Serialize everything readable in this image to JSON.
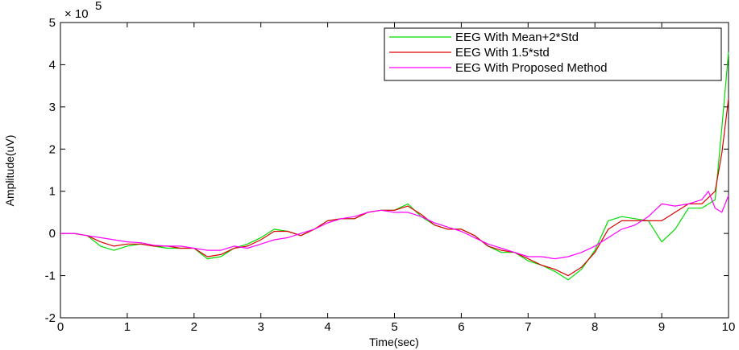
{
  "chart_data": {
    "type": "line",
    "title": "",
    "xlabel": "Time(sec)",
    "ylabel": "Amplitude(uV)",
    "xlim": [
      0,
      10
    ],
    "ylim": [
      -2,
      5
    ],
    "y_multiplier_label": "× 10",
    "y_multiplier_exponent": "5",
    "x_ticks": [
      "0",
      "1",
      "2",
      "3",
      "4",
      "5",
      "6",
      "7",
      "8",
      "9",
      "10"
    ],
    "y_ticks": [
      "-2",
      "-1",
      "0",
      "1",
      "2",
      "3",
      "4",
      "5"
    ],
    "grid": false,
    "legend_position": "top-right",
    "series": [
      {
        "name": "EEG With Mean+2*Std",
        "color": "#00dd00",
        "x": [
          0,
          0.2,
          0.4,
          0.6,
          0.8,
          1.0,
          1.2,
          1.4,
          1.6,
          1.8,
          2.0,
          2.2,
          2.4,
          2.6,
          2.8,
          3.0,
          3.2,
          3.4,
          3.6,
          3.8,
          4.0,
          4.2,
          4.4,
          4.6,
          4.8,
          5.0,
          5.2,
          5.4,
          5.6,
          5.8,
          6.0,
          6.2,
          6.4,
          6.6,
          6.8,
          7.0,
          7.2,
          7.4,
          7.6,
          7.8,
          8.0,
          8.2,
          8.4,
          8.6,
          8.8,
          9.0,
          9.2,
          9.4,
          9.6,
          9.8,
          9.9,
          10.0
        ],
        "y": [
          0,
          0,
          -0.05,
          -0.3,
          -0.4,
          -0.3,
          -0.25,
          -0.3,
          -0.35,
          -0.35,
          -0.35,
          -0.6,
          -0.55,
          -0.35,
          -0.25,
          -0.1,
          0.1,
          0.05,
          -0.05,
          0.1,
          0.3,
          0.35,
          0.35,
          0.5,
          0.55,
          0.55,
          0.7,
          0.4,
          0.2,
          0.1,
          0.1,
          -0.05,
          -0.3,
          -0.45,
          -0.45,
          -0.65,
          -0.75,
          -0.9,
          -1.1,
          -0.85,
          -0.4,
          0.3,
          0.4,
          0.35,
          0.3,
          -0.2,
          0.1,
          0.6,
          0.6,
          0.8,
          2.5,
          4.3
        ]
      },
      {
        "name": "EEG With 1.5*std",
        "color": "#dd0000",
        "x": [
          0,
          0.2,
          0.4,
          0.6,
          0.8,
          1.0,
          1.2,
          1.4,
          1.6,
          1.8,
          2.0,
          2.2,
          2.4,
          2.6,
          2.8,
          3.0,
          3.2,
          3.4,
          3.6,
          3.8,
          4.0,
          4.2,
          4.4,
          4.6,
          4.8,
          5.0,
          5.2,
          5.4,
          5.6,
          5.8,
          6.0,
          6.2,
          6.4,
          6.6,
          6.8,
          7.0,
          7.2,
          7.4,
          7.6,
          7.8,
          8.0,
          8.2,
          8.4,
          8.6,
          8.8,
          9.0,
          9.2,
          9.4,
          9.6,
          9.8,
          9.9,
          10.0
        ],
        "y": [
          0,
          0,
          -0.05,
          -0.2,
          -0.3,
          -0.25,
          -0.25,
          -0.3,
          -0.3,
          -0.35,
          -0.35,
          -0.55,
          -0.5,
          -0.35,
          -0.3,
          -0.15,
          0.05,
          0.05,
          -0.05,
          0.1,
          0.3,
          0.35,
          0.35,
          0.5,
          0.55,
          0.55,
          0.65,
          0.45,
          0.2,
          0.1,
          0.1,
          -0.05,
          -0.3,
          -0.4,
          -0.45,
          -0.6,
          -0.75,
          -0.85,
          -1.0,
          -0.8,
          -0.45,
          0.1,
          0.3,
          0.3,
          0.3,
          0.3,
          0.5,
          0.7,
          0.7,
          1.0,
          1.9,
          3.2
        ]
      },
      {
        "name": "EEG With Proposed Method",
        "color": "#ff00ff",
        "x": [
          0,
          0.2,
          0.4,
          0.6,
          0.8,
          1.0,
          1.2,
          1.4,
          1.6,
          1.8,
          2.0,
          2.2,
          2.4,
          2.6,
          2.8,
          3.0,
          3.2,
          3.4,
          3.6,
          3.8,
          4.0,
          4.2,
          4.4,
          4.6,
          4.8,
          5.0,
          5.2,
          5.4,
          5.6,
          5.8,
          6.0,
          6.2,
          6.4,
          6.6,
          6.8,
          7.0,
          7.2,
          7.4,
          7.6,
          7.8,
          8.0,
          8.2,
          8.4,
          8.6,
          8.8,
          9.0,
          9.2,
          9.4,
          9.6,
          9.7,
          9.8,
          9.9,
          10.0
        ],
        "y": [
          0,
          0,
          -0.05,
          -0.1,
          -0.15,
          -0.2,
          -0.22,
          -0.28,
          -0.3,
          -0.3,
          -0.35,
          -0.4,
          -0.4,
          -0.3,
          -0.35,
          -0.25,
          -0.15,
          -0.1,
          0,
          0.1,
          0.25,
          0.35,
          0.4,
          0.5,
          0.55,
          0.5,
          0.5,
          0.4,
          0.25,
          0.15,
          0.05,
          -0.1,
          -0.25,
          -0.35,
          -0.45,
          -0.55,
          -0.55,
          -0.6,
          -0.55,
          -0.45,
          -0.3,
          -0.1,
          0.1,
          0.2,
          0.4,
          0.7,
          0.65,
          0.7,
          0.8,
          1.0,
          0.6,
          0.5,
          0.9
        ]
      }
    ]
  }
}
